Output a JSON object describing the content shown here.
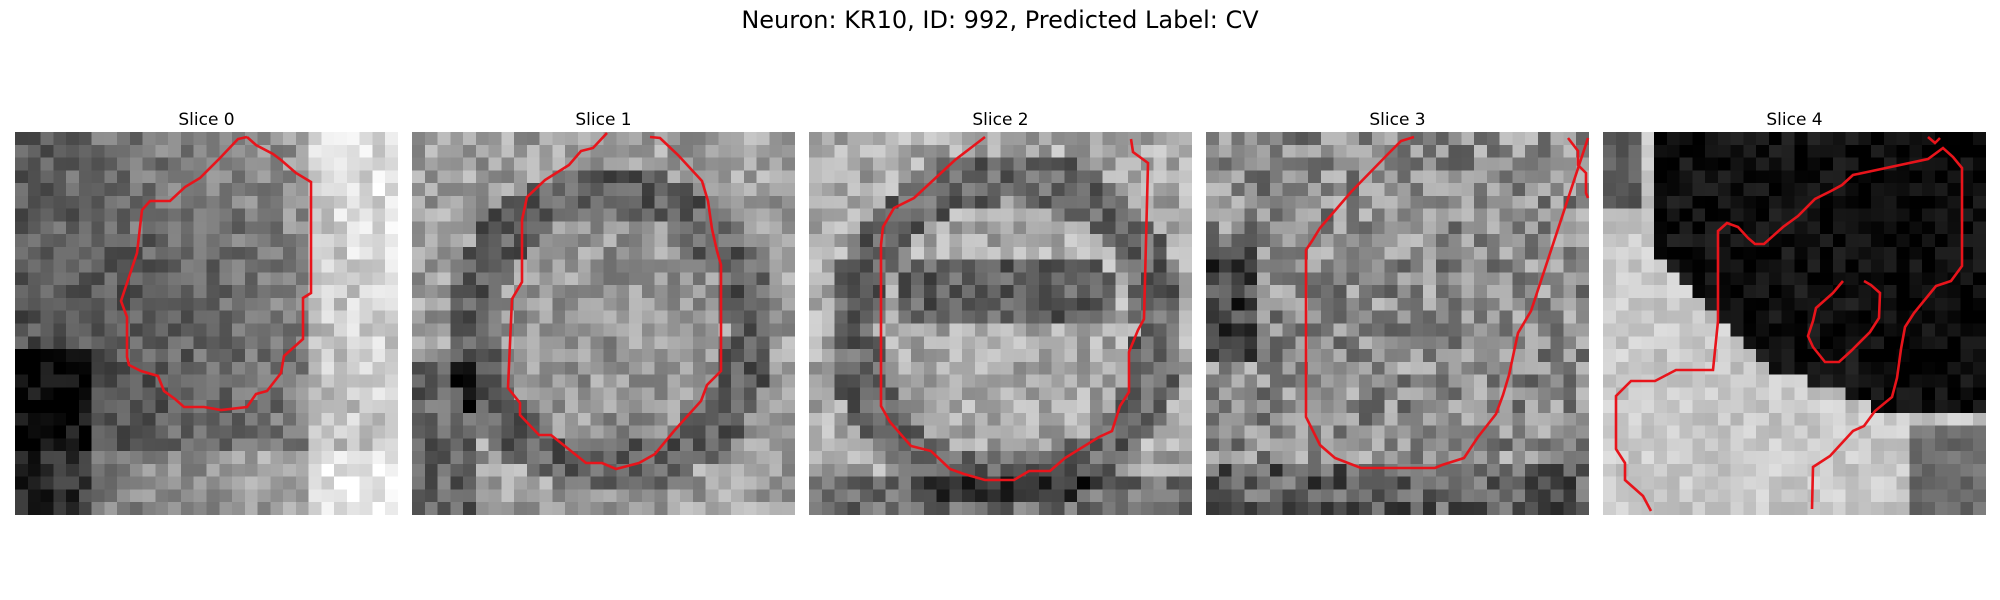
{
  "figure": {
    "title": "Neuron: KR10, ID: 992, Predicted Label: CV"
  },
  "colors": {
    "contour": "#e8141b",
    "background": "#ffffff"
  },
  "slices": [
    {
      "title": "Slice 0"
    },
    {
      "title": "Slice 1"
    },
    {
      "title": "Slice 2"
    },
    {
      "title": "Slice 3"
    },
    {
      "title": "Slice 4"
    }
  ]
}
